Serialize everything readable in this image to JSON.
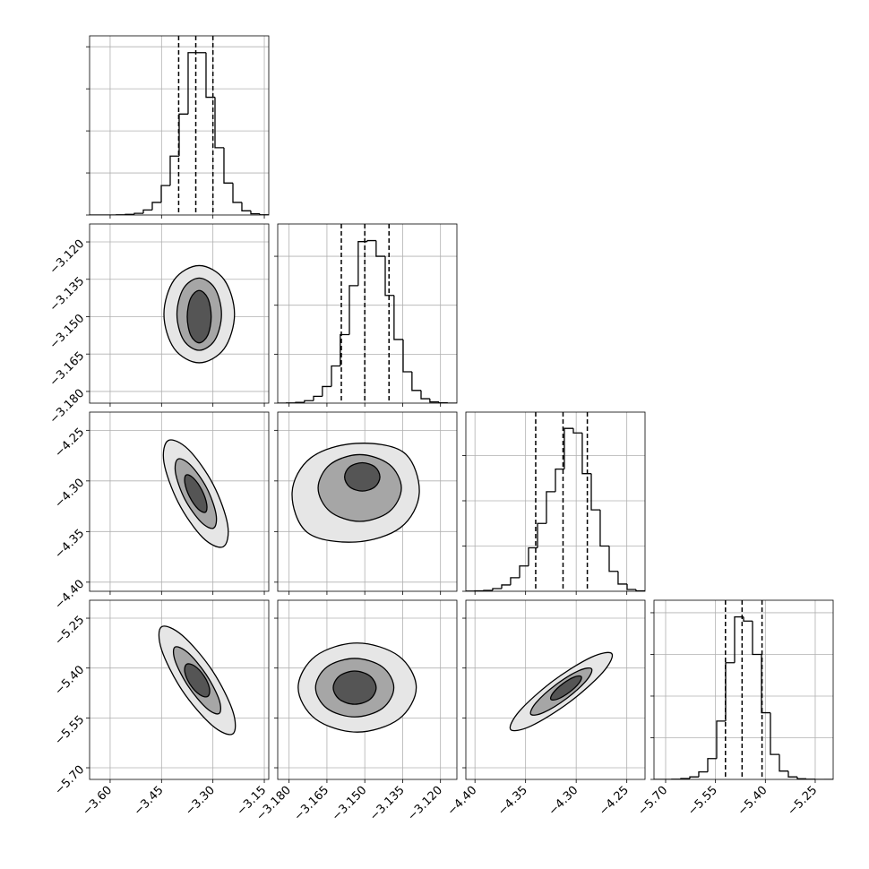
{
  "chart_data": [
    {
      "type": "histogram",
      "color": "#000000",
      "grid": true,
      "bins": [
        -3.66,
        -3.6339,
        -3.6077,
        -3.5816,
        -3.5554,
        -3.5293,
        -3.5031,
        -3.477,
        -3.4508,
        -3.4247,
        -3.3985,
        -3.3724,
        -3.3462,
        -3.3201,
        -3.2939,
        -3.2678,
        -3.2416,
        -3.2155,
        -3.1893,
        -3.1632,
        -3.137
      ],
      "values": [
        0,
        0,
        0,
        2,
        8,
        20,
        60,
        150,
        350,
        700,
        1200,
        1930,
        1930,
        1400,
        800,
        380,
        150,
        50,
        15,
        3
      ],
      "quantiles": [
        -3.4,
        -3.35,
        -3.3
      ],
      "xlim": [
        -3.66,
        -3.137
      ],
      "ylim": [
        0,
        2130
      ],
      "xticks": [
        -3.6,
        -3.45,
        -3.3,
        -3.15
      ],
      "yticks": [
        0,
        500,
        1000,
        1500,
        2000
      ]
    },
    {
      "type": "contour",
      "grid": true,
      "colors": [
        "#e6e6e6",
        "#a6a6a6",
        "#555555"
      ],
      "xlim": [
        -3.66,
        -3.137
      ],
      "ylim": [
        -3.1847,
        -3.1128
      ],
      "xticks": [
        -3.6,
        -3.45,
        -3.3,
        -3.15
      ],
      "yticks": [
        {
          "value": -3.18,
          "label": "−3.180"
        },
        {
          "value": -3.165,
          "label": "−3.165"
        },
        {
          "value": -3.15,
          "label": "−3.150"
        },
        {
          "value": -3.135,
          "label": "−3.135"
        },
        {
          "value": -3.12,
          "label": "−3.120"
        }
      ],
      "contours": [
        {
          "x": [
            -3.237,
            -3.267,
            -3.34,
            -3.413,
            -3.443,
            -3.413,
            -3.34,
            -3.267
          ],
          "y": [
            -3.149,
            -3.1352,
            -3.1295,
            -3.1352,
            -3.149,
            -3.1628,
            -3.1685,
            -3.1628
          ]
        },
        {
          "x": [
            -3.275,
            -3.294,
            -3.34,
            -3.386,
            -3.405,
            -3.386,
            -3.34,
            -3.294
          ],
          "y": [
            -3.149,
            -3.1387,
            -3.1345,
            -3.1387,
            -3.149,
            -3.1593,
            -3.1635,
            -3.1593
          ]
        },
        {
          "x": [
            -3.305,
            -3.315,
            -3.34,
            -3.365,
            -3.375,
            -3.365,
            -3.34,
            -3.315
          ],
          "y": [
            -3.15,
            -3.1426,
            -3.1395,
            -3.1426,
            -3.15,
            -3.1574,
            -3.1605,
            -3.1574
          ]
        }
      ]
    },
    {
      "type": "histogram",
      "color": "#000000",
      "grid": true,
      "bins": [
        -3.1845,
        -3.181,
        -3.1774,
        -3.1739,
        -3.1703,
        -3.1668,
        -3.1632,
        -3.1597,
        -3.1561,
        -3.1526,
        -3.149,
        -3.1455,
        -3.1419,
        -3.1384,
        -3.1348,
        -3.1313,
        -3.1277,
        -3.1242,
        -3.1206,
        -3.1171,
        -3.1135
      ],
      "values": [
        0,
        2,
        8,
        25,
        70,
        170,
        380,
        700,
        1200,
        1650,
        1660,
        1500,
        1100,
        650,
        320,
        130,
        45,
        12,
        3,
        0
      ],
      "quantiles": [
        -3.1593,
        -3.15,
        -3.1404
      ],
      "xlim": [
        -3.1845,
        -3.1135
      ],
      "ylim": [
        0,
        1830
      ],
      "xticks": [
        -3.18,
        -3.165,
        -3.15,
        -3.135,
        -3.12
      ],
      "yticks": [
        0,
        500,
        1000,
        1500
      ]
    },
    {
      "type": "contour",
      "grid": true,
      "colors": [
        "#e6e6e6",
        "#a6a6a6",
        "#555555"
      ],
      "xlim": [
        -3.66,
        -3.137
      ],
      "ylim": [
        -4.409,
        -4.232
      ],
      "xticks": [
        -3.6,
        -3.45,
        -3.3,
        -3.15
      ],
      "yticks": [
        {
          "value": -4.4,
          "label": "−4.40"
        },
        {
          "value": -4.35,
          "label": "−4.35"
        },
        {
          "value": -4.3,
          "label": "−4.30"
        },
        {
          "value": -4.25,
          "label": "−4.25"
        }
      ],
      "contours": [
        {
          "x": [
            -3.27,
            -3.257,
            -3.299,
            -3.371,
            -3.43,
            -3.443,
            -3.401,
            -3.33
          ],
          "y": [
            -4.365,
            -4.3433,
            -4.3036,
            -4.2691,
            -4.26,
            -4.2817,
            -4.3214,
            -4.3559
          ]
        },
        {
          "x": [
            -3.298,
            -3.291,
            -3.318,
            -3.365,
            -3.402,
            -3.409,
            -3.382,
            -3.335
          ],
          "y": [
            -4.3466,
            -4.3327,
            -4.307,
            -4.2845,
            -4.2784,
            -4.2923,
            -4.318,
            -4.3405
          ]
        },
        {
          "x": [
            -3.322,
            -3.318,
            -3.332,
            -3.357,
            -3.378,
            -3.382,
            -3.368,
            -3.343
          ],
          "y": [
            -4.3309,
            -4.3232,
            -4.3093,
            -4.2972,
            -4.2941,
            -4.3018,
            -4.3157,
            -4.3278
          ]
        }
      ]
    },
    {
      "type": "contour",
      "grid": true,
      "colors": [
        "#e6e6e6",
        "#a6a6a6",
        "#555555"
      ],
      "xlim": [
        -3.1845,
        -3.1135
      ],
      "ylim": [
        -4.409,
        -4.232
      ],
      "xticks": [
        -3.18,
        -3.165,
        -3.15,
        -3.135,
        -3.12
      ],
      "yticks": [
        -4.4,
        -4.35,
        -4.3,
        -4.25
      ],
      "contours": [
        {
          "x": [
            -3.1284,
            -3.1345,
            -3.1536,
            -3.1714,
            -3.1788,
            -3.1727,
            -3.1536,
            -3.1358
          ],
          "y": [
            -4.3116,
            -4.272,
            -4.2629,
            -4.2772,
            -4.3116,
            -4.351,
            -4.3603,
            -4.346
          ]
        },
        {
          "x": [
            -3.1355,
            -3.1403,
            -3.152,
            -3.1637,
            -3.1685,
            -3.1637,
            -3.152,
            -3.1403
          ],
          "y": [
            -4.307,
            -4.2837,
            -4.274,
            -4.2837,
            -4.307,
            -4.3303,
            -4.34,
            -4.3303
          ]
        },
        {
          "x": [
            -3.144,
            -3.146,
            -3.151,
            -3.156,
            -3.158,
            -3.156,
            -3.151,
            -3.146
          ],
          "y": [
            -4.296,
            -4.2861,
            -4.282,
            -4.2861,
            -4.296,
            -4.3059,
            -4.31,
            -4.3059
          ]
        }
      ]
    },
    {
      "type": "histogram",
      "color": "#000000",
      "grid": true,
      "bins": [
        -4.409,
        -4.4002,
        -4.3913,
        -4.3825,
        -4.3736,
        -4.3648,
        -4.3559,
        -4.3471,
        -4.3382,
        -4.3294,
        -4.3205,
        -4.3117,
        -4.3028,
        -4.294,
        -4.2851,
        -4.2763,
        -4.2674,
        -4.2586,
        -4.2497,
        -4.2409,
        -4.232
      ],
      "values": [
        2,
        5,
        10,
        30,
        70,
        150,
        280,
        480,
        750,
        1100,
        1350,
        1800,
        1750,
        1300,
        900,
        500,
        220,
        80,
        20,
        5
      ],
      "quantiles": [
        -4.34,
        -4.313,
        -4.289
      ],
      "xlim": [
        -4.409,
        -4.232
      ],
      "ylim": [
        0,
        1980
      ],
      "xticks": [
        -4.4,
        -4.35,
        -4.3,
        -4.25
      ],
      "yticks": [
        0,
        500,
        1000,
        1500
      ]
    },
    {
      "type": "contour",
      "grid": true,
      "colors": [
        "#e6e6e6",
        "#a6a6a6",
        "#555555"
      ],
      "xlim": [
        -3.66,
        -3.137
      ],
      "ylim": [
        -5.735,
        -5.196
      ],
      "xticks": [
        {
          "value": -3.6,
          "label": "−3.60"
        },
        {
          "value": -3.45,
          "label": "−3.45"
        },
        {
          "value": -3.3,
          "label": "−3.30"
        },
        {
          "value": -3.15,
          "label": "−3.15"
        }
      ],
      "yticks": [
        {
          "value": -5.7,
          "label": "−5.70"
        },
        {
          "value": -5.55,
          "label": "−5.55"
        },
        {
          "value": -5.4,
          "label": "−5.40"
        },
        {
          "value": -5.25,
          "label": "−5.25"
        }
      ],
      "contours": [
        {
          "x": [
            -3.242,
            -3.242,
            -3.302,
            -3.389,
            -3.45,
            -3.45,
            -3.39,
            -3.303
          ],
          "y": [
            -5.598,
            -5.5297,
            -5.4072,
            -5.3021,
            -5.276,
            -5.3443,
            -5.4668,
            -5.5719
          ]
        },
        {
          "x": [
            -3.282,
            -3.282,
            -3.32,
            -3.373,
            -3.411,
            -3.41,
            -3.372,
            -3.319
          ],
          "y": [
            -5.5368,
            -5.4949,
            -5.4191,
            -5.3537,
            -5.3372,
            -5.3791,
            -5.4549,
            -5.5203
          ]
        },
        {
          "x": [
            -3.315,
            -3.31,
            -3.326,
            -3.354,
            -3.377,
            -3.382,
            -3.366,
            -3.338
          ],
          "y": [
            -5.4853,
            -5.4616,
            -5.4236,
            -5.3934,
            -5.3887,
            -5.4124,
            -5.4504,
            -5.4806
          ]
        }
      ]
    },
    {
      "type": "contour",
      "grid": true,
      "colors": [
        "#e6e6e6",
        "#a6a6a6",
        "#555555"
      ],
      "xlim": [
        -3.1845,
        -3.1135
      ],
      "ylim": [
        -5.735,
        -5.196
      ],
      "xticks": [
        {
          "value": -3.18,
          "label": "−3.180"
        },
        {
          "value": -3.165,
          "label": "−3.165"
        },
        {
          "value": -3.15,
          "label": "−3.150"
        },
        {
          "value": -3.135,
          "label": "−3.135"
        },
        {
          "value": -3.12,
          "label": "−3.120"
        }
      ],
      "yticks": [
        -5.7,
        -5.55,
        -5.4,
        -5.25
      ],
      "contours": [
        {
          "x": [
            -3.1296,
            -3.1365,
            -3.153,
            -3.1695,
            -3.1764,
            -3.1695,
            -3.153,
            -3.1365
          ],
          "y": [
            -5.4587,
            -5.364,
            -5.3247,
            -5.364,
            -5.4587,
            -5.5534,
            -5.5927,
            -5.5534
          ]
        },
        {
          "x": [
            -3.1385,
            -3.143,
            -3.154,
            -3.165,
            -3.1695,
            -3.165,
            -3.154,
            -3.143
          ],
          "y": [
            -5.459,
            -5.3968,
            -5.371,
            -5.3968,
            -5.459,
            -5.5212,
            -5.547,
            -5.5212
          ]
        },
        {
          "x": [
            -3.1455,
            -3.148,
            -3.154,
            -3.16,
            -3.1625,
            -3.16,
            -3.154,
            -3.148
          ],
          "y": [
            -5.459,
            -5.4236,
            -5.409,
            -5.4236,
            -5.459,
            -5.4944,
            -5.509,
            -5.4944
          ]
        }
      ]
    },
    {
      "type": "contour",
      "grid": true,
      "colors": [
        "#e6e6e6",
        "#a6a6a6",
        "#555555"
      ],
      "xlim": [
        -4.409,
        -4.232
      ],
      "ylim": [
        -5.735,
        -5.196
      ],
      "xticks": [
        {
          "value": -4.4,
          "label": "−4.40"
        },
        {
          "value": -4.35,
          "label": "−4.35"
        },
        {
          "value": -4.3,
          "label": "−4.30"
        },
        {
          "value": -4.25,
          "label": "−4.25"
        }
      ],
      "yticks": [
        -5.7,
        -5.55,
        -5.4,
        -5.25
      ],
      "contours": [
        {
          "x": [
            -4.2648,
            -4.2738,
            -4.3068,
            -4.3445,
            -4.3648,
            -4.3558,
            -4.3228,
            -4.2851
          ],
          "y": [
            -5.3569,
            -5.413,
            -5.503,
            -5.5741,
            -5.5847,
            -5.5286,
            -5.4386,
            -5.3675
          ]
        },
        {
          "x": [
            -4.2848,
            -4.2899,
            -4.3096,
            -4.3323,
            -4.3448,
            -4.3397,
            -4.32,
            -4.2973
          ],
          "y": [
            -5.4025,
            -5.4373,
            -5.4917,
            -5.5339,
            -5.5391,
            -5.5043,
            -5.4499,
            -5.4077
          ]
        },
        {
          "x": [
            -4.295,
            -4.2971,
            -4.3068,
            -4.3183,
            -4.325,
            -4.3229,
            -4.3132,
            -4.3017
          ],
          "y": [
            -5.4258,
            -5.4449,
            -5.4729,
            -5.4933,
            -5.4942,
            -5.4751,
            -5.4471,
            -5.4267
          ]
        }
      ]
    },
    {
      "type": "histogram",
      "color": "#000000",
      "grid": true,
      "bins": [
        -5.735,
        -5.7081,
        -5.6811,
        -5.6542,
        -5.6272,
        -5.6003,
        -5.5733,
        -5.5464,
        -5.5194,
        -5.4925,
        -5.4655,
        -5.4386,
        -5.4116,
        -5.3847,
        -5.3577,
        -5.3308,
        -5.3038,
        -5.2769,
        -5.2499,
        -5.223,
        -5.196
      ],
      "values": [
        0,
        0,
        3,
        10,
        30,
        90,
        250,
        700,
        1400,
        1950,
        1900,
        1500,
        800,
        300,
        100,
        30,
        8,
        2,
        0,
        0
      ],
      "quantiles": [
        -5.52,
        -5.47,
        -5.41
      ],
      "xlim": [
        -5.735,
        -5.196
      ],
      "ylim": [
        0,
        2150
      ],
      "xticks": [
        {
          "value": -5.7,
          "label": "−5.70"
        },
        {
          "value": -5.55,
          "label": "−5.55"
        },
        {
          "value": -5.4,
          "label": "−5.40"
        },
        {
          "value": -5.25,
          "label": "−5.25"
        }
      ],
      "yticks": [
        0,
        500,
        1000,
        1500,
        2000
      ]
    }
  ]
}
